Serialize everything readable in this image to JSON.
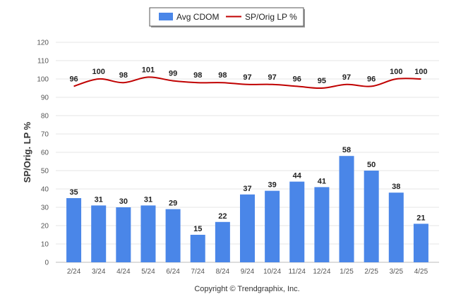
{
  "chart_data": {
    "type": "bar",
    "categories": [
      "2/24",
      "3/24",
      "4/24",
      "5/24",
      "6/24",
      "7/24",
      "8/24",
      "9/24",
      "10/24",
      "11/24",
      "12/24",
      "1/25",
      "2/25",
      "3/25",
      "4/25"
    ],
    "series": [
      {
        "name": "Avg CDOM",
        "kind": "bar",
        "values": [
          35,
          31,
          30,
          31,
          29,
          15,
          22,
          37,
          39,
          44,
          41,
          58,
          50,
          38,
          21
        ]
      },
      {
        "name": "SP/Orig LP %",
        "kind": "line",
        "values": [
          96,
          100,
          98,
          101,
          99,
          98,
          98,
          97,
          97,
          96,
          95,
          97,
          96,
          100,
          100
        ]
      }
    ],
    "ylabel": "SP/Orig. LP %",
    "ylim": [
      0,
      120
    ],
    "yticks": [
      0,
      10,
      20,
      30,
      40,
      50,
      60,
      70,
      80,
      90,
      100,
      110,
      120
    ],
    "grid": true,
    "legend_position": "top-center",
    "colors": {
      "bar": "#4a86e8",
      "line": "#c00000"
    }
  },
  "footer": {
    "copyright": "Copyright © Trendgraphix, Inc."
  }
}
